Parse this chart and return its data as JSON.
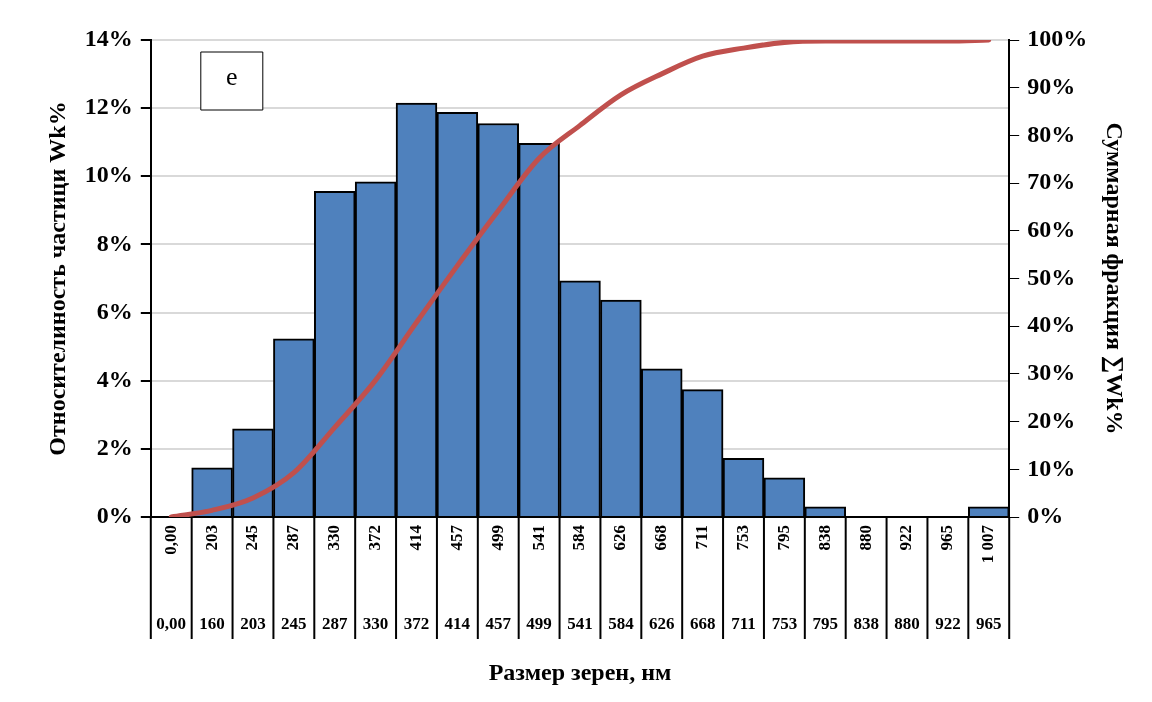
{
  "chart_data": {
    "type": "bar",
    "categories": [
      "0,00",
      "203",
      "245",
      "287",
      "330",
      "372",
      "414",
      "457",
      "499",
      "541",
      "584",
      "626",
      "668",
      "711",
      "753",
      "795",
      "838",
      "880",
      "922",
      "965",
      "1 007"
    ],
    "series": [
      {
        "color": "#4f81bd",
        "values": [
          0,
          1.44,
          2.59,
          5.23,
          9.56,
          9.84,
          12.15,
          11.88,
          11.55,
          10.97,
          6.93,
          6.37,
          4.35,
          3.74,
          1.72,
          1.15,
          0.3,
          0,
          0,
          0,
          0.3
        ]
      },
      {
        "type": "line",
        "axis": "y2",
        "color": "#c0504d",
        "values": [
          0,
          1.4,
          4.0,
          9.3,
          18.8,
          28.7,
          40.8,
          52.7,
          64.2,
          75.2,
          82.1,
          88.5,
          92.9,
          96.6,
          98.3,
          99.5,
          99.8,
          99.8,
          99.8,
          99.8,
          100
        ]
      }
    ],
    "xlabel": "Размер зерен, нм",
    "ylabel": "Относителиность частици Wk%",
    "y2label": "Суммарная фракция ∑Wk%",
    "ylim": [
      0,
      14
    ],
    "yticks": [
      {
        "value": 0,
        "label": "0%"
      },
      {
        "value": 2,
        "label": "2%"
      },
      {
        "value": 4,
        "label": "4%"
      },
      {
        "value": 6,
        "label": "6%"
      },
      {
        "value": 8,
        "label": "8%"
      },
      {
        "value": 10,
        "label": "10%"
      },
      {
        "value": 12,
        "label": "12%"
      },
      {
        "value": 14,
        "label": "14%"
      }
    ],
    "y2lim": [
      0,
      100
    ],
    "y2ticks": [
      {
        "value": 0,
        "label": "0%"
      },
      {
        "value": 10,
        "label": "10%"
      },
      {
        "value": 20,
        "label": "20%"
      },
      {
        "value": 30,
        "label": "30%"
      },
      {
        "value": 40,
        "label": "40%"
      },
      {
        "value": 50,
        "label": "50%"
      },
      {
        "value": 60,
        "label": "60%"
      },
      {
        "value": 70,
        "label": "70%"
      },
      {
        "value": 80,
        "label": "80%"
      },
      {
        "value": 90,
        "label": "90%"
      },
      {
        "value": 100,
        "label": "100%"
      }
    ],
    "annotations": [
      "e",
      "0,00",
      "160",
      "203",
      "245",
      "287",
      "330",
      "372",
      "414",
      "457",
      "499",
      "541",
      "584",
      "626",
      "668",
      "711",
      "753",
      "795",
      "838",
      "880",
      "922",
      "965"
    ],
    "grid": "y",
    "legend": false,
    "marker": "none",
    "line_style": "solid"
  }
}
